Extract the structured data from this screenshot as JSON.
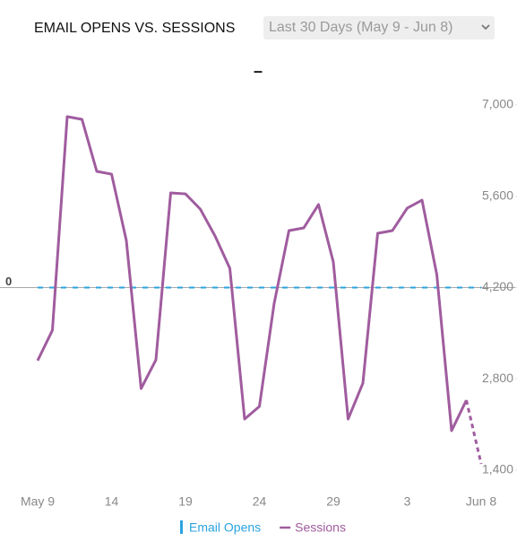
{
  "chart_data": {
    "type": "line",
    "title": "EMAIL OPENS VS. SESSIONS",
    "subtitle": "–",
    "date_range_selector": "Last 30 Days (May 9 - Jun 8)",
    "categories": [
      "May 9",
      null,
      null,
      null,
      null,
      "14",
      null,
      null,
      null,
      null,
      "19",
      null,
      null,
      null,
      null,
      "24",
      null,
      null,
      null,
      null,
      "29",
      null,
      null,
      null,
      null,
      "3",
      null,
      null,
      null,
      null,
      "Jun 8"
    ],
    "series": [
      {
        "name": "Email Opens",
        "color": "#2aa3df",
        "axis": "y2",
        "line_style": "dashed",
        "values": [
          0,
          0,
          0,
          0,
          0,
          0,
          0,
          0,
          0,
          0,
          0,
          0,
          0,
          0,
          0,
          0,
          0,
          0,
          0,
          0,
          0,
          0,
          0,
          0,
          0,
          0,
          0,
          0,
          0,
          0,
          0
        ]
      },
      {
        "name": "Sessions",
        "color": "#a05c9e",
        "axis": "y",
        "line_style": "solid",
        "last_segment_style": "dashed",
        "values": [
          3080,
          3546,
          6821,
          6780,
          5982,
          5940,
          4922,
          2652,
          3092,
          5651,
          5637,
          5404,
          4991,
          4496,
          2184,
          2377,
          3959,
          5074,
          5115,
          5473,
          4592,
          2184,
          2734,
          5032,
          5074,
          5418,
          5541,
          4399,
          2005,
          2473,
          1496
        ]
      }
    ],
    "ylim": [
      1400,
      7000
    ],
    "yticks": [
      {
        "value": 1400,
        "label": "1,400"
      },
      {
        "value": 2800,
        "label": "2,800"
      },
      {
        "value": 4200,
        "label": "4,200"
      },
      {
        "value": 5600,
        "label": "5,600"
      },
      {
        "value": 7000,
        "label": "7,000"
      }
    ],
    "y2lim": [
      -1,
      1
    ],
    "y2ticks": [
      0
    ],
    "grid": true
  }
}
